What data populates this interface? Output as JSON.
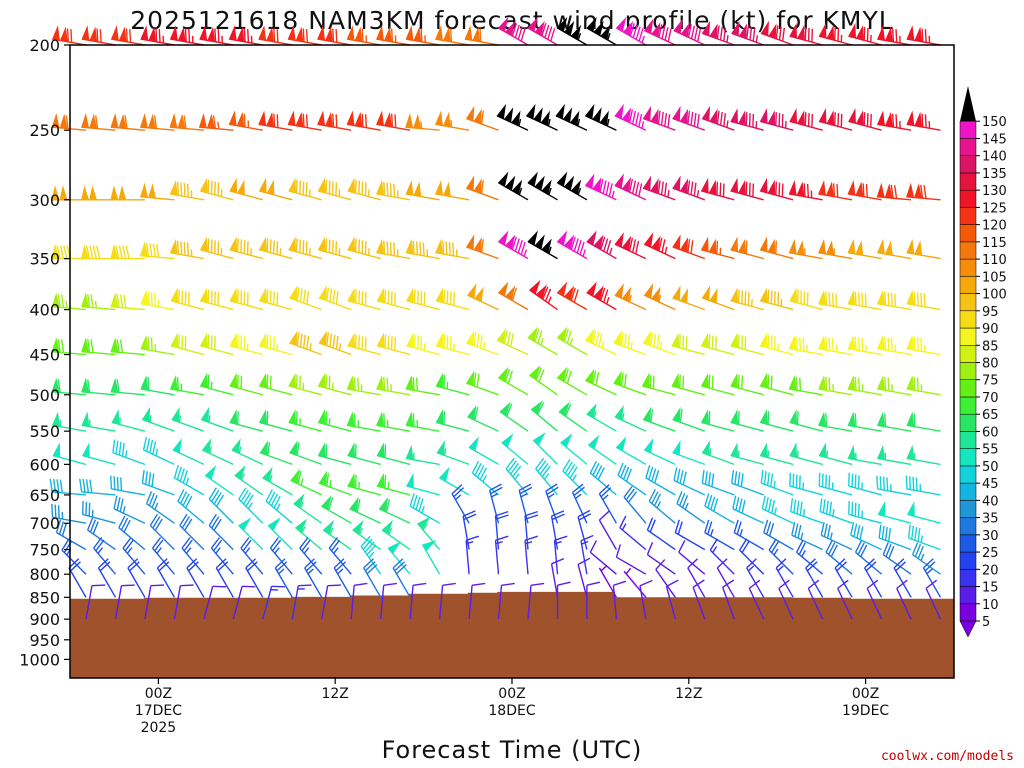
{
  "chart_data": {
    "type": "wind-barb-time-height",
    "title": "2025121618 NAM3KM forecast wind profile (kt) for KMYL",
    "xlabel": "Forecast Time (UTC)",
    "ylabel": "Pressure (hPa)",
    "credit": "coolwx.com/models",
    "x_range_hours": [
      0,
      60
    ],
    "x_ticks": [
      {
        "hour": 6,
        "lines": [
          "00Z",
          "17DEC",
          "2025"
        ]
      },
      {
        "hour": 18,
        "lines": [
          "12Z"
        ]
      },
      {
        "hour": 30,
        "lines": [
          "00Z",
          "18DEC"
        ]
      },
      {
        "hour": 42,
        "lines": [
          "12Z"
        ]
      },
      {
        "hour": 54,
        "lines": [
          "00Z",
          "19DEC"
        ]
      }
    ],
    "y_ticks": [
      200,
      250,
      300,
      350,
      400,
      450,
      500,
      550,
      600,
      650,
      700,
      750,
      800,
      850,
      900,
      950,
      1000
    ],
    "y_range_hpa": [
      200,
      1050
    ],
    "levels": [
      200,
      250,
      300,
      350,
      400,
      450,
      500,
      550,
      600,
      650,
      700,
      750,
      800,
      850,
      900
    ],
    "times_hours": [
      0,
      2,
      4,
      6,
      8,
      10,
      12,
      14,
      16,
      18,
      20,
      22,
      24,
      26,
      28,
      30,
      32,
      34,
      36,
      38,
      40,
      42,
      44,
      46,
      48,
      50,
      52,
      54,
      56,
      58
    ],
    "colorbar": {
      "ticks": [
        5,
        10,
        15,
        20,
        25,
        30,
        35,
        40,
        45,
        50,
        55,
        60,
        65,
        70,
        75,
        80,
        85,
        90,
        95,
        100,
        105,
        110,
        115,
        120,
        125,
        130,
        135,
        140,
        145,
        150
      ],
      "colors": [
        "#7a00e0",
        "#5a1ee8",
        "#3a32f0",
        "#2242f0",
        "#1e5ae8",
        "#1e78e0",
        "#1e96d8",
        "#14b4e0",
        "#14d2dc",
        "#14e6c0",
        "#1ee696",
        "#28e664",
        "#3cf032",
        "#64f014",
        "#a0f014",
        "#d2f014",
        "#f5f51e",
        "#f5dc14",
        "#f5c314",
        "#f5aa0a",
        "#f58c0a",
        "#f5780a",
        "#f55a0a",
        "#f53214",
        "#f01428",
        "#e6143c",
        "#dc1464",
        "#e6148c",
        "#f014c8",
        "#000000"
      ]
    },
    "wind_speed_kt": {
      "200": [
        120,
        120,
        120,
        125,
        125,
        125,
        125,
        120,
        120,
        120,
        115,
        115,
        115,
        110,
        110,
        140,
        140,
        155,
        155,
        145,
        140,
        140,
        135,
        135,
        130,
        130,
        125,
        125,
        125,
        125
      ],
      "250": [
        110,
        110,
        110,
        110,
        110,
        115,
        115,
        120,
        120,
        120,
        120,
        120,
        105,
        105,
        110,
        155,
        155,
        155,
        155,
        145,
        140,
        140,
        135,
        135,
        135,
        130,
        130,
        130,
        125,
        125
      ],
      "300": [
        100,
        100,
        100,
        100,
        95,
        95,
        100,
        100,
        95,
        95,
        95,
        95,
        100,
        100,
        110,
        155,
        155,
        155,
        145,
        140,
        135,
        135,
        130,
        130,
        130,
        125,
        120,
        120,
        120,
        120
      ],
      "350": [
        90,
        90,
        90,
        90,
        95,
        95,
        95,
        95,
        95,
        95,
        95,
        95,
        95,
        95,
        110,
        145,
        155,
        145,
        135,
        130,
        125,
        120,
        115,
        110,
        110,
        105,
        105,
        100,
        100,
        100
      ],
      "400": [
        75,
        75,
        80,
        85,
        90,
        90,
        90,
        90,
        90,
        90,
        90,
        90,
        90,
        90,
        100,
        110,
        125,
        120,
        125,
        105,
        105,
        100,
        100,
        95,
        95,
        90,
        90,
        90,
        90,
        90
      ],
      "450": [
        70,
        70,
        70,
        75,
        80,
        80,
        85,
        85,
        95,
        95,
        90,
        90,
        85,
        85,
        85,
        80,
        75,
        75,
        85,
        85,
        85,
        80,
        80,
        80,
        85,
        85,
        85,
        85,
        85,
        85
      ],
      "500": [
        60,
        60,
        60,
        60,
        65,
        65,
        70,
        70,
        75,
        75,
        75,
        75,
        70,
        65,
        70,
        70,
        70,
        70,
        70,
        70,
        70,
        70,
        70,
        70,
        70,
        70,
        75,
        75,
        75,
        75
      ],
      "550": [
        55,
        55,
        55,
        55,
        55,
        55,
        60,
        60,
        65,
        65,
        65,
        65,
        65,
        60,
        60,
        60,
        60,
        60,
        55,
        55,
        60,
        60,
        60,
        60,
        60,
        60,
        60,
        60,
        60,
        60
      ],
      "600": [
        50,
        50,
        45,
        45,
        50,
        55,
        55,
        60,
        60,
        60,
        60,
        60,
        55,
        55,
        50,
        50,
        50,
        50,
        50,
        50,
        50,
        50,
        55,
        55,
        55,
        55,
        55,
        55,
        55,
        55
      ],
      "650": [
        40,
        40,
        40,
        40,
        45,
        50,
        55,
        55,
        65,
        65,
        65,
        65,
        50,
        50,
        45,
        45,
        45,
        45,
        40,
        40,
        40,
        40,
        40,
        40,
        45,
        45,
        45,
        45,
        45,
        45
      ],
      "700": [
        35,
        35,
        35,
        35,
        40,
        40,
        45,
        45,
        55,
        60,
        60,
        60,
        45,
        25,
        25,
        25,
        25,
        25,
        25,
        30,
        35,
        35,
        40,
        40,
        45,
        45,
        45,
        45,
        50,
        50
      ],
      "750": [
        30,
        30,
        30,
        30,
        30,
        30,
        50,
        50,
        55,
        55,
        55,
        55,
        55,
        20,
        20,
        20,
        20,
        20,
        10,
        15,
        20,
        20,
        25,
        25,
        30,
        35,
        35,
        40,
        40,
        45
      ],
      "800": [
        25,
        25,
        25,
        25,
        25,
        25,
        25,
        25,
        25,
        25,
        45,
        50,
        50,
        15,
        15,
        15,
        15,
        15,
        10,
        10,
        10,
        10,
        15,
        20,
        25,
        25,
        30,
        30,
        30,
        35
      ],
      "850": [
        20,
        20,
        20,
        20,
        20,
        20,
        20,
        25,
        25,
        25,
        30,
        30,
        0,
        0,
        0,
        0,
        10,
        10,
        5,
        5,
        10,
        10,
        10,
        15,
        15,
        20,
        20,
        20,
        20,
        25
      ],
      "900": [
        10,
        10,
        10,
        10,
        10,
        10,
        15,
        15,
        10,
        10,
        10,
        10,
        10,
        10,
        10,
        10,
        10,
        10,
        10,
        10,
        10,
        10,
        10,
        10,
        10,
        10,
        10,
        10,
        10,
        10
      ]
    },
    "wind_dir_deg": {
      "200": [
        280,
        280,
        280,
        280,
        280,
        280,
        280,
        280,
        280,
        280,
        280,
        280,
        280,
        280,
        280,
        300,
        300,
        300,
        300,
        300,
        295,
        295,
        290,
        290,
        290,
        285,
        285,
        285,
        280,
        280
      ],
      "250": [
        275,
        275,
        275,
        275,
        275,
        275,
        280,
        280,
        280,
        280,
        280,
        280,
        275,
        280,
        290,
        295,
        295,
        295,
        295,
        295,
        290,
        290,
        290,
        285,
        285,
        285,
        285,
        285,
        280,
        280
      ],
      "300": [
        270,
        270,
        270,
        275,
        280,
        285,
        285,
        285,
        285,
        285,
        285,
        280,
        280,
        280,
        290,
        300,
        300,
        300,
        295,
        295,
        290,
        290,
        285,
        285,
        285,
        280,
        280,
        280,
        275,
        275
      ],
      "350": [
        270,
        270,
        270,
        275,
        280,
        285,
        285,
        285,
        285,
        285,
        285,
        280,
        280,
        280,
        290,
        300,
        300,
        300,
        300,
        295,
        295,
        290,
        285,
        285,
        285,
        280,
        280,
        280,
        280,
        280
      ],
      "400": [
        275,
        275,
        275,
        280,
        285,
        285,
        285,
        285,
        290,
        290,
        285,
        285,
        285,
        285,
        295,
        300,
        305,
        300,
        300,
        295,
        295,
        290,
        290,
        285,
        285,
        285,
        280,
        280,
        280,
        280
      ],
      "450": [
        275,
        275,
        275,
        280,
        285,
        285,
        285,
        285,
        290,
        290,
        285,
        285,
        285,
        285,
        290,
        295,
        300,
        300,
        295,
        290,
        290,
        285,
        285,
        285,
        285,
        280,
        280,
        280,
        280,
        280
      ],
      "500": [
        275,
        275,
        275,
        280,
        280,
        285,
        285,
        285,
        285,
        285,
        280,
        280,
        280,
        285,
        290,
        300,
        305,
        300,
        295,
        290,
        285,
        285,
        285,
        285,
        285,
        280,
        280,
        280,
        280,
        280
      ],
      "550": [
        280,
        280,
        285,
        290,
        290,
        290,
        285,
        285,
        285,
        285,
        280,
        280,
        280,
        285,
        295,
        305,
        310,
        305,
        300,
        295,
        290,
        290,
        285,
        285,
        285,
        285,
        280,
        280,
        280,
        280
      ],
      "600": [
        285,
        285,
        290,
        295,
        295,
        295,
        295,
        290,
        290,
        285,
        285,
        285,
        280,
        290,
        300,
        310,
        315,
        310,
        305,
        300,
        295,
        290,
        290,
        285,
        285,
        285,
        285,
        280,
        280,
        280
      ],
      "650": [
        275,
        275,
        280,
        290,
        300,
        305,
        305,
        300,
        295,
        290,
        285,
        285,
        285,
        300,
        310,
        320,
        320,
        315,
        310,
        305,
        300,
        295,
        290,
        290,
        290,
        285,
        285,
        285,
        280,
        280
      ],
      "700": [
        280,
        285,
        295,
        305,
        310,
        315,
        315,
        310,
        305,
        300,
        295,
        295,
        300,
        330,
        345,
        345,
        340,
        335,
        330,
        320,
        310,
        305,
        300,
        295,
        295,
        290,
        290,
        285,
        285,
        285
      ],
      "750": [
        300,
        305,
        310,
        315,
        315,
        315,
        315,
        315,
        310,
        305,
        305,
        305,
        320,
        350,
        355,
        355,
        350,
        345,
        330,
        310,
        305,
        300,
        300,
        300,
        300,
        295,
        295,
        295,
        290,
        290
      ],
      "800": [
        315,
        320,
        320,
        320,
        320,
        320,
        320,
        320,
        320,
        320,
        325,
        320,
        330,
        355,
        355,
        355,
        355,
        350,
        310,
        300,
        305,
        310,
        315,
        315,
        315,
        310,
        310,
        310,
        305,
        305
      ],
      "850": [
        330,
        330,
        330,
        330,
        330,
        330,
        330,
        330,
        330,
        330,
        330,
        330,
        0,
        0,
        0,
        0,
        350,
        345,
        330,
        320,
        325,
        330,
        330,
        330,
        330,
        330,
        330,
        330,
        330,
        330
      ],
      "900": [
        10,
        10,
        10,
        10,
        15,
        15,
        15,
        10,
        10,
        5,
        5,
        5,
        5,
        5,
        5,
        5,
        0,
        0,
        355,
        350,
        345,
        340,
        340,
        335,
        335,
        335,
        335,
        335,
        335,
        335
      ]
    },
    "terrain_top_hpa": [
      853,
      853,
      853,
      851,
      851,
      851,
      851,
      851,
      849,
      849,
      846,
      846,
      842,
      842,
      840,
      838,
      838,
      838,
      838,
      850,
      850,
      850,
      850,
      850,
      850,
      851,
      851,
      853,
      853,
      853
    ],
    "terrain_color": "#a0522d",
    "background": "#ffffff"
  }
}
